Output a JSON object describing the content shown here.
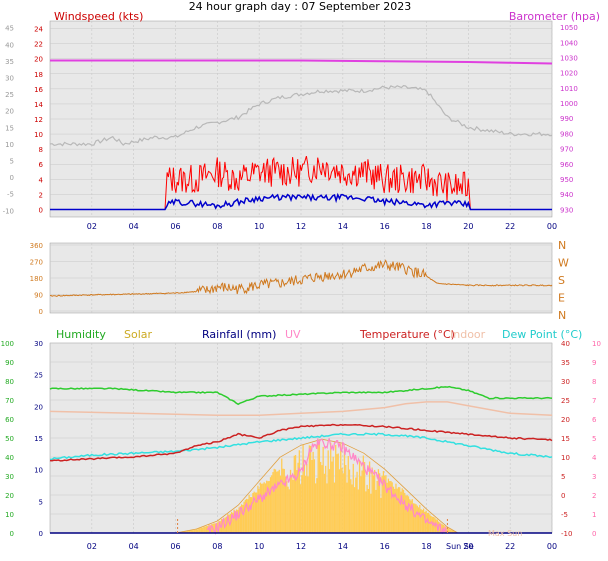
{
  "title": "24 hour graph day : 07 September 2023",
  "x_ticks": [
    "02",
    "04",
    "06",
    "08",
    "10",
    "12",
    "14",
    "16",
    "18",
    "20",
    "22",
    "00"
  ],
  "colors": {
    "wind_gust": "#ff0000",
    "wind_avg": "#0000cc",
    "barometer": "#e040e0",
    "temp_gray": "#b8b8b8",
    "wind_dir": "#d07a20",
    "humidity": "#2ecc2e",
    "solar": "#ffcc55",
    "rainfall": "#000080",
    "uv": "#ff88c8",
    "temperature": "#cc2222",
    "indoor": "#f0c0a8",
    "dewpoint": "#33e0e0",
    "plot_bg": "#e8e8e8",
    "grid": "#c8c8c8",
    "axis_text": "#000080"
  },
  "panel1": {
    "left_title": "Windspeed (kts)",
    "right_title": "Barometer (hpa)",
    "left_gray_ticks": [
      "45",
      "40",
      "35",
      "30",
      "25",
      "20",
      "15",
      "10",
      "5",
      "0",
      "-5",
      "-10"
    ],
    "left_red_ticks": [
      "24",
      "22",
      "20",
      "18",
      "16",
      "14",
      "12",
      "10",
      "8",
      "6",
      "4",
      "2",
      "0"
    ],
    "right_ticks": [
      "1050",
      "1040",
      "1030",
      "1020",
      "1010",
      "1000",
      "990",
      "980",
      "970",
      "960",
      "950",
      "940",
      "930"
    ]
  },
  "panel2": {
    "left_ticks": [
      "360",
      "270",
      "180",
      "90",
      "0"
    ],
    "right_ticks": [
      "N",
      "W",
      "S",
      "E",
      "N"
    ]
  },
  "panel3": {
    "legend": {
      "humidity": "Humidity",
      "solar": "Solar",
      "rainfall": "Rainfall (mm)",
      "uv": "UV",
      "temperature": "Temperature (°C)",
      "indoor": "Indoor",
      "dewpoint": "Dew Point (°C)"
    },
    "left_green_ticks": [
      "100",
      "90",
      "80",
      "70",
      "60",
      "50",
      "40",
      "30",
      "20",
      "10",
      "0"
    ],
    "left_blue_ticks": [
      "30",
      "25",
      "20",
      "15",
      "10",
      "5",
      "0"
    ],
    "right_red_ticks": [
      "40",
      "35",
      "30",
      "25",
      "20",
      "15",
      "10",
      "5",
      "0",
      "-5",
      "-10"
    ],
    "right_pink_ticks": [
      "10",
      "9",
      "8",
      "7",
      "6",
      "5",
      "4",
      "3",
      "2",
      "1",
      "0"
    ],
    "sun_label": "Sun Se",
    "maxsun_label": "Max Sun"
  },
  "chart_data": [
    {
      "type": "line",
      "title": "",
      "x_unit": "hour",
      "series": [
        {
          "name": "Windspeed (kts)",
          "x": [
            0,
            5.5,
            5.6,
            6,
            7,
            8,
            9,
            10,
            11,
            12,
            13,
            14,
            15,
            16,
            17,
            18,
            19,
            19.5,
            20,
            20.1,
            24
          ],
          "values": [
            0,
            0,
            4,
            4,
            4,
            5,
            4,
            5,
            5,
            5,
            6,
            5,
            5,
            4,
            4,
            4,
            3,
            3,
            3,
            0,
            0
          ]
        },
        {
          "x": [
            0,
            5.5,
            5.6,
            6,
            7,
            8,
            9,
            10,
            11,
            12,
            13,
            14,
            15,
            16,
            17,
            18,
            19,
            20,
            20.1,
            24
          ],
          "values": [
            0,
            0,
            0.6,
            1,
            0.8,
            0.5,
            1,
            1.5,
            1.6,
            1.6,
            1.5,
            1.6,
            1.5,
            1,
            0.9,
            0.6,
            0.9,
            0.6,
            0,
            0
          ]
        },
        {
          "name": "Barometer (hpa)",
          "x": [
            0,
            4,
            8,
            12,
            16,
            20,
            22,
            24
          ],
          "values": [
            1028,
            1028,
            1028,
            1028,
            1027.5,
            1027,
            1026.5,
            1026
          ]
        },
        {
          "x": [
            0,
            2,
            3,
            3.5,
            5,
            6,
            7,
            9,
            10,
            11,
            12,
            13,
            14,
            15,
            16,
            17,
            18,
            18.5,
            19,
            20,
            22,
            24
          ],
          "values": [
            10,
            10,
            12,
            10,
            12,
            12,
            15,
            18,
            22,
            24,
            25,
            26,
            26,
            26,
            27,
            27,
            26,
            22,
            18,
            15,
            13,
            13
          ]
        }
      ]
    },
    {
      "type": "scatter",
      "title": "",
      "y_unit": "degrees",
      "x": [
        0,
        2,
        4,
        6,
        7.5,
        8,
        9,
        10,
        11,
        12,
        13,
        14,
        15,
        16,
        17,
        18,
        18.5,
        20,
        22,
        24
      ],
      "values": [
        82,
        88,
        92,
        98,
        110,
        130,
        120,
        140,
        150,
        170,
        190,
        200,
        230,
        250,
        230,
        190,
        150,
        140,
        140,
        140
      ]
    },
    {
      "type": "line",
      "title": "",
      "x_unit": "hour",
      "series": [
        {
          "name": "Humidity",
          "x": [
            0,
            3,
            6,
            8,
            9,
            10,
            12,
            14,
            16,
            18,
            19,
            20,
            21,
            24
          ],
          "values": [
            76,
            76,
            74,
            74,
            68,
            72,
            73,
            74,
            74,
            76,
            77,
            75,
            71,
            71
          ]
        },
        {
          "name": "Temperature (°C)",
          "x": [
            0,
            2,
            4,
            6,
            7,
            8,
            9,
            10,
            11,
            12,
            14,
            16,
            18,
            20,
            22,
            24
          ],
          "values": [
            9,
            9.5,
            10,
            11,
            13,
            14,
            16,
            15,
            17,
            18,
            18.5,
            18,
            17,
            16,
            15,
            14.5
          ]
        },
        {
          "name": "Dew Point (°C)",
          "x": [
            0,
            2,
            4,
            6,
            8,
            10,
            12,
            14,
            16,
            18,
            20,
            22,
            24
          ],
          "values": [
            9.5,
            10.5,
            11,
            11.5,
            12.5,
            14,
            15,
            16,
            16,
            15,
            13,
            11,
            10
          ]
        },
        {
          "name": "Indoor",
          "x": [
            0,
            4,
            8,
            10,
            12,
            14,
            16,
            17,
            18,
            19,
            20,
            22,
            24
          ],
          "values": [
            22,
            21.5,
            21,
            21,
            21.5,
            22,
            23,
            24,
            24.5,
            24.5,
            23.5,
            21.5,
            21
          ]
        },
        {
          "name": "Solar",
          "x": [
            6,
            7,
            8,
            9,
            10,
            11,
            12,
            13,
            14,
            15,
            16,
            17,
            18,
            19,
            19.5
          ],
          "values": [
            0,
            20,
            60,
            140,
            260,
            380,
            440,
            470,
            450,
            400,
            320,
            220,
            120,
            30,
            0
          ]
        },
        {
          "name": "UV",
          "x": [
            7.5,
            8,
            9,
            10,
            11,
            12,
            12.5,
            13,
            14,
            15,
            16,
            17,
            18,
            19
          ],
          "values": [
            0,
            0.3,
            1,
            1.8,
            2.5,
            3.2,
            4.5,
            4.8,
            4.5,
            3.5,
            2.5,
            1.5,
            0.6,
            0
          ]
        },
        {
          "name": "Rainfall (mm)",
          "x": [
            0,
            24
          ],
          "values": [
            0,
            0
          ]
        }
      ]
    }
  ]
}
